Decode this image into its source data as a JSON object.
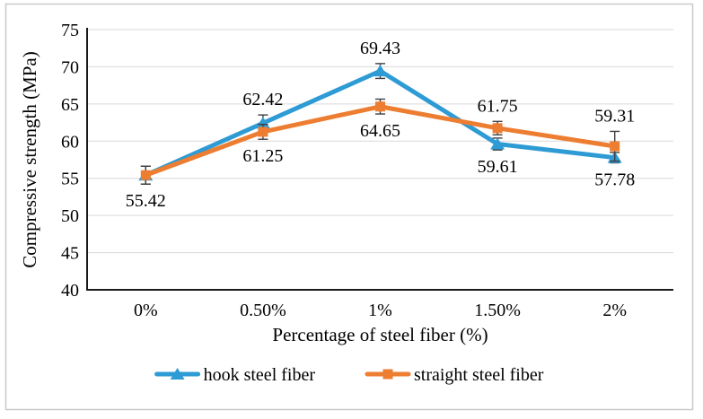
{
  "figure": {
    "background": "#FFFFFF",
    "border_color": "#C9C9C9"
  },
  "chart_data": {
    "type": "line",
    "title": "",
    "xlabel": "Percentage of steel fiber (%)",
    "ylabel": "Compressive strength (MPa)",
    "categories": [
      "0%",
      "0.50%",
      "1%",
      "1.50%",
      "2%"
    ],
    "ylim": [
      40,
      75
    ],
    "yticks": [
      40,
      45,
      50,
      55,
      60,
      65,
      70,
      75
    ],
    "grid": true,
    "grid_color": "#D9D9D9",
    "axis_color": "#1A1A1A",
    "error_bar_color": "#404040",
    "text_color": "#000000",
    "legend_position": "bottom",
    "series": [
      {
        "name": "hook steel fiber",
        "color": "#2E9BD5",
        "marker": "triangle",
        "values": [
          55.42,
          62.42,
          69.43,
          59.61,
          57.78
        ],
        "errors": [
          1.2,
          1.1,
          1.0,
          0.8,
          0.7
        ],
        "labels": [
          "55.42",
          "62.42",
          "69.43",
          "59.61",
          "57.78"
        ],
        "label_positions": [
          "below",
          "above",
          "above",
          "below",
          "below"
        ]
      },
      {
        "name": "straight steel fiber",
        "color": "#ED7D31",
        "marker": "square",
        "values": [
          55.42,
          61.25,
          64.65,
          61.75,
          59.31
        ],
        "errors": [
          1.2,
          1.0,
          1.0,
          0.9,
          2.0
        ],
        "labels": [
          "",
          "61.25",
          "64.65",
          "61.75",
          "59.31"
        ],
        "label_positions": [
          "none",
          "below",
          "below",
          "above",
          "above"
        ]
      }
    ]
  }
}
